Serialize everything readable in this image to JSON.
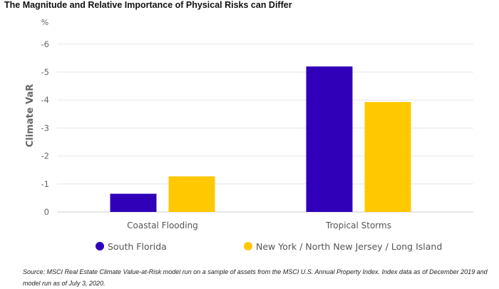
{
  "title": "The Magnitude and Relative Importance of Physical Risks can Differ",
  "source": "Source: MSCI Real Estate Climate Value-at-Risk model run on a sample of assets from the MSCI U.S. Annual Property Index. Index data as of December 2019 and model run as of July 3, 2020.",
  "chart_data": {
    "type": "bar",
    "title": "The Magnitude and Relative Importance of Physical Risks can Differ",
    "xlabel": "",
    "ylabel": "Climate VaR",
    "unit": "%",
    "categories": [
      "Coastal Flooding",
      "Tropical Storms"
    ],
    "series": [
      {
        "name": "South Florida",
        "color": "#2f00b8",
        "values": [
          -0.65,
          -5.2
        ]
      },
      {
        "name": "New York / North New Jersey / Long Island",
        "color": "#ffc800",
        "values": [
          -1.27,
          -3.93
        ]
      }
    ],
    "yticks": [
      0,
      -1,
      -2,
      -3,
      -4,
      -5,
      -6
    ],
    "ylim": [
      0,
      -6
    ],
    "grid": true,
    "legend": "bottom"
  }
}
